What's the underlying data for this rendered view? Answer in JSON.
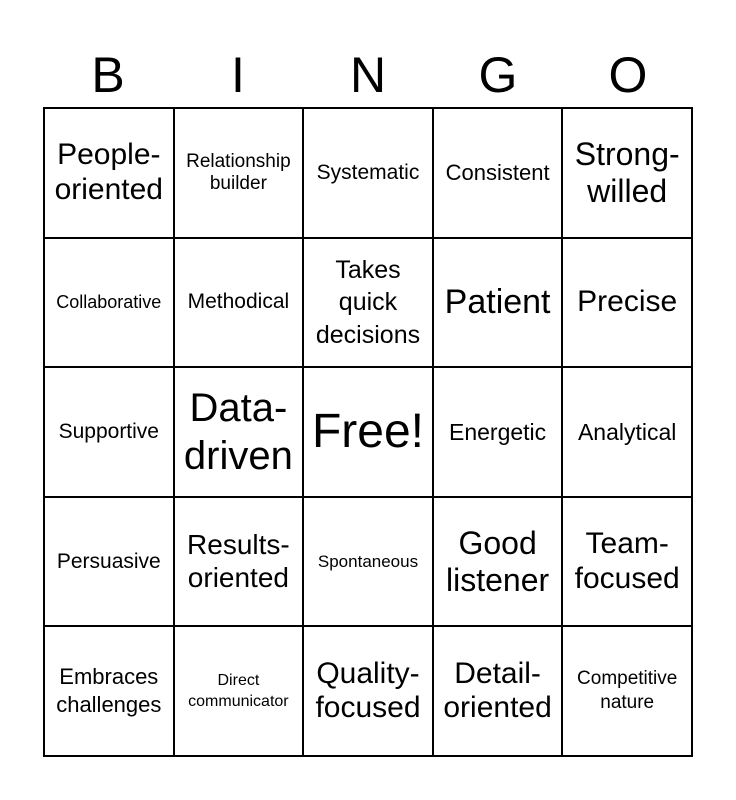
{
  "header": [
    "B",
    "I",
    "N",
    "G",
    "O"
  ],
  "cells": [
    [
      "People-oriented",
      "Relationship builder",
      "Systematic",
      "Consistent",
      "Strong-willed"
    ],
    [
      "Collaborative",
      "Methodical",
      "Takes quick decisions",
      "Patient",
      "Precise"
    ],
    [
      "Supportive",
      "Data-driven",
      "Free!",
      "Energetic",
      "Analytical"
    ],
    [
      "Persuasive",
      "Results-oriented",
      "Spontaneous",
      "Good listener",
      "Team-focused"
    ],
    [
      "Embraces challenges",
      "Direct communicator",
      "Quality-focused",
      "Detail-oriented",
      "Competitive nature"
    ]
  ]
}
